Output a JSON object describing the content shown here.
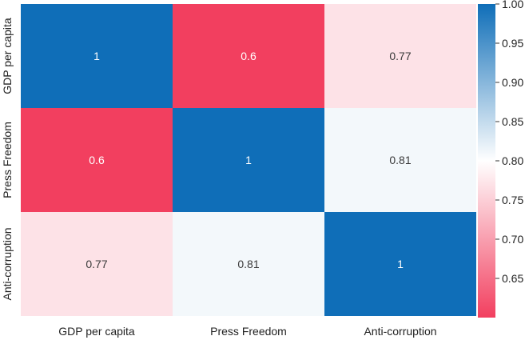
{
  "chart_data": {
    "type": "heatmap",
    "title": "",
    "xlabel": "",
    "ylabel": "",
    "x_categories": [
      "GDP per capita",
      "Press Freedom",
      "Anti-corruption"
    ],
    "y_categories": [
      "GDP per capita",
      "Press Freedom",
      "Anti-corruption"
    ],
    "values": [
      [
        1,
        0.6,
        0.77
      ],
      [
        0.6,
        1,
        0.81
      ],
      [
        0.77,
        0.81,
        1
      ]
    ],
    "cell_labels": [
      [
        "1",
        "0.6",
        "0.77"
      ],
      [
        "0.6",
        "1",
        "0.81"
      ],
      [
        "0.77",
        "0.81",
        "1"
      ]
    ],
    "colorbar": {
      "min": 0.6,
      "max": 1.0,
      "ticks": [
        "0.65",
        "0.70",
        "0.75",
        "0.80",
        "0.85",
        "0.90",
        "0.95",
        "1.00"
      ],
      "colors": {
        "low": "#f23f5f",
        "mid": "#ffffff",
        "high": "#0f6eb8"
      }
    },
    "text_colors": {
      "light": "#ffffff",
      "dark": "#3b3b3b"
    }
  }
}
